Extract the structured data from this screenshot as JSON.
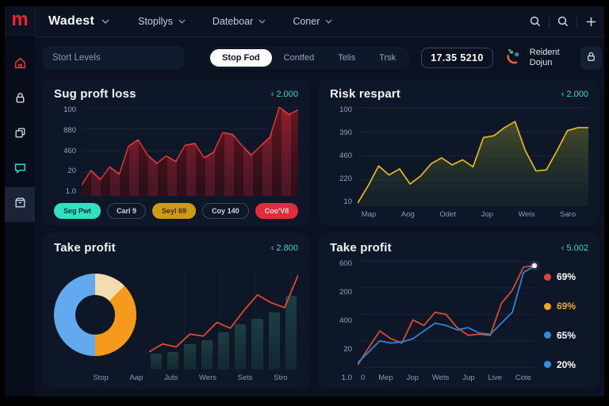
{
  "topbar": {
    "brand": "Wadest",
    "nav_items": [
      "Stopllys",
      "Dateboar",
      "Coner"
    ],
    "action_icons": [
      "search-icon",
      "search-icon",
      "plus-icon"
    ]
  },
  "sidebar": {
    "items": [
      {
        "icon": "home-icon",
        "accent": "#e03a3a",
        "active": false
      },
      {
        "icon": "lock-icon",
        "accent": "#c9d2e0",
        "active": false
      },
      {
        "icon": "layers-icon",
        "accent": "#c9d2e0",
        "active": false
      },
      {
        "icon": "chat-icon",
        "accent": "#2cd9c5",
        "active": false
      },
      {
        "icon": "box-icon",
        "accent": "#c9d2e0",
        "active": true
      }
    ]
  },
  "toolbar": {
    "search_placeholder": "Stort Levels",
    "tabs": [
      {
        "label": "Stop Fod",
        "active": true
      },
      {
        "label": "Contfed",
        "active": false
      },
      {
        "label": "Telis",
        "active": false
      },
      {
        "label": "Trsk",
        "active": false
      }
    ],
    "value_box": "17.35 5210",
    "user_name": "Reident Dojun"
  },
  "colors": {
    "accent_teal": "#2cd9c5",
    "logo_red": "#e8252c",
    "panel_bg": "#0e1728",
    "red_line": "#e23b3b",
    "gold_line": "#e8b623",
    "blue_line": "#2f83d6",
    "orange_red_line": "#d94a2e"
  },
  "chart_data": [
    {
      "type": "area",
      "title": "Sug proft loss",
      "header_link": "‹ 2.000",
      "y_ticks": [
        "100",
        "880",
        "460",
        "20",
        "1.0"
      ],
      "values": [
        12,
        28,
        18,
        32,
        24,
        55,
        62,
        45,
        36,
        44,
        38,
        56,
        58,
        42,
        48,
        70,
        68,
        56,
        45,
        55,
        65,
        98,
        90,
        95
      ],
      "line_color": "#e23b3b",
      "fill_top": "rgba(170,30,45,0.80)",
      "fill_bottom": "rgba(90,15,28,0.55)",
      "legend_chips": [
        {
          "label": "Seg Pwt",
          "variant": "teal"
        },
        {
          "label": "Carl 9",
          "variant": "outline"
        },
        {
          "label": "Seyl 69",
          "variant": "gold"
        },
        {
          "label": "Coy 140",
          "variant": "outline"
        },
        {
          "label": "Coo'V8",
          "variant": "red"
        }
      ]
    },
    {
      "type": "area",
      "title": "Risk respart",
      "header_link": "‹ 2.000",
      "y_ticks": [
        "100",
        "390",
        "460",
        "220",
        "10"
      ],
      "x_ticks": [
        "Map",
        "Aog",
        "Odet",
        "Jop",
        "Weis",
        "Saro"
      ],
      "values": [
        3,
        20,
        40,
        31,
        37,
        22,
        30,
        42,
        48,
        41,
        46,
        39,
        68,
        70,
        78,
        84,
        55,
        35,
        36,
        55,
        75,
        78,
        78
      ],
      "line_color": "#e8b623",
      "fill_top": "rgba(110,115,40,0.60)",
      "fill_bottom": "rgba(30,55,50,0.25)"
    },
    {
      "type": "combo-donut-bar-line",
      "title": "Take profit",
      "header_link": "‹ 2.800",
      "donut_slices": [
        {
          "name": "slice-cream",
          "pct": 12.5,
          "color": "#f3ddb0"
        },
        {
          "name": "slice-orange",
          "pct": 37.5,
          "color": "#f59a1b"
        },
        {
          "name": "slice-blue",
          "pct": 50,
          "color": "#63a9ee"
        }
      ],
      "bars": [
        16,
        18,
        26,
        30,
        38,
        46,
        52,
        58,
        75
      ],
      "line": [
        18,
        26,
        23,
        36,
        34,
        48,
        42,
        60,
        76,
        68,
        63,
        96
      ],
      "line_color": "#e84c2b",
      "x_ticks": [
        "Stop",
        "Aap",
        "Juts",
        "Wers",
        "Sets",
        "Stro"
      ]
    },
    {
      "type": "line",
      "title": "Take profit",
      "header_link": "‹ 5.002",
      "y_ticks": [
        "600",
        "200",
        "400",
        "20",
        "1.0"
      ],
      "x_ticks": [
        "0",
        "Mep",
        "Jop",
        "Wets",
        "Jup",
        "Live",
        "Cote"
      ],
      "series": [
        {
          "name": "red",
          "color": "#d94a2e",
          "values": [
            4,
            20,
            35,
            28,
            24,
            45,
            40,
            52,
            50,
            38,
            31,
            32,
            31,
            60,
            72,
            93,
            94
          ]
        },
        {
          "name": "blue",
          "color": "#2f83d6",
          "values": [
            6,
            16,
            26,
            24,
            25,
            28,
            35,
            42,
            40,
            36,
            38,
            33,
            32,
            42,
            52,
            88,
            94
          ]
        }
      ],
      "endpoint_dot": true,
      "legend": [
        {
          "value": "69%",
          "dot_color": "#e2452f",
          "text_color": "#ffffff"
        },
        {
          "value": "69%",
          "dot_color": "#f2a41d",
          "text_color": "#f2a41d"
        },
        {
          "value": "65%",
          "dot_color": "#2f8fe8",
          "text_color": "#ffffff"
        },
        {
          "value": "20%",
          "dot_color": "#2f8fe8",
          "text_color": "#ffffff"
        }
      ]
    }
  ]
}
